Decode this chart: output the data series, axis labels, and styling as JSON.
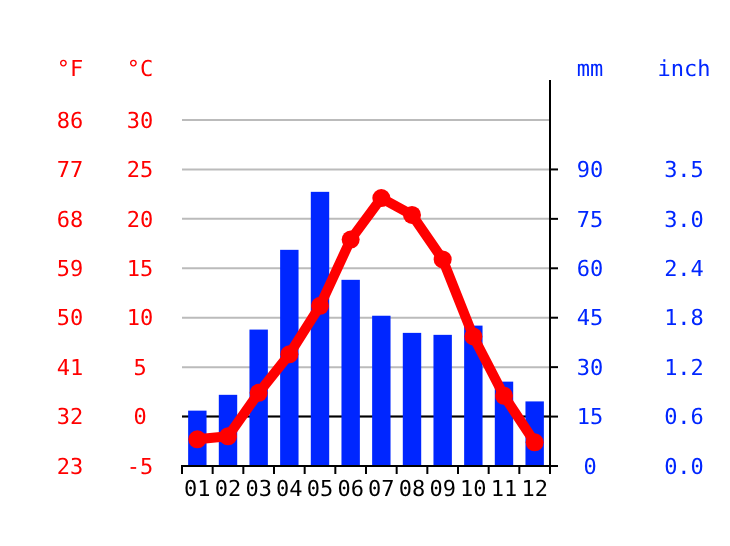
{
  "chart_data": {
    "type": "bar",
    "categories": [
      "01",
      "02",
      "03",
      "04",
      "05",
      "06",
      "07",
      "08",
      "09",
      "10",
      "11",
      "12"
    ],
    "series": [
      {
        "axis": "y2",
        "color": "#0026ff",
        "values": [
          16.8,
          21.6,
          41.4,
          65.6,
          83.2,
          56.5,
          45.6,
          40.4,
          39.8,
          42.6,
          25.6,
          19.6
        ]
      },
      {
        "type": "line",
        "axis": "y",
        "color": "#ff0000",
        "marker": "circle",
        "values": [
          -2.3,
          -2.0,
          2.4,
          6.3,
          11.2,
          17.9,
          22.1,
          20.4,
          15.9,
          8.1,
          2.1,
          -2.6
        ]
      }
    ],
    "ylabel": "°C",
    "ylim": [
      -5,
      30
    ],
    "yticks": [
      -5,
      0,
      5,
      10,
      15,
      20,
      25,
      30
    ],
    "y3label": "°F",
    "y3lim": [
      23,
      86
    ],
    "y3ticks": [
      23,
      32,
      41,
      50,
      59,
      68,
      77,
      86
    ],
    "y2label": "mm",
    "y2lim": [
      0,
      105
    ],
    "y2ticks": [
      0,
      15,
      30,
      45,
      60,
      75,
      90
    ],
    "annotations": [
      "inch",
      "0.0",
      "0.6",
      "1.2",
      "1.8",
      "2.4",
      "3.0",
      "3.5"
    ],
    "grid": "y"
  }
}
